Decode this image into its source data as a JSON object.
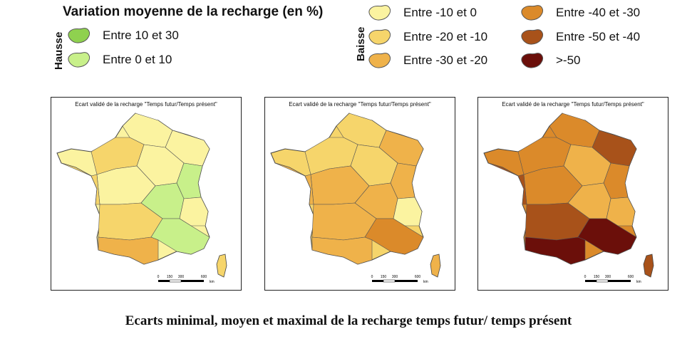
{
  "legend": {
    "title": "Variation moyenne de la recharge (en %)",
    "hausse_label": "Hausse",
    "baisse_label": "Baisse",
    "hausse": [
      {
        "label": "Entre 10 et 30",
        "color": "#8fd14f"
      },
      {
        "label": "Entre 0 et 10",
        "color": "#c8f08a"
      }
    ],
    "baisse": [
      {
        "label": "Entre -10 et 0",
        "color": "#fbf3a0"
      },
      {
        "label": "Entre -20 et -10",
        "color": "#f6d56b"
      },
      {
        "label": "Entre -30 et -20",
        "color": "#efb24a"
      },
      {
        "label": "Entre -40 et -30",
        "color": "#db8a2a"
      },
      {
        "label": "Entre -50 et -40",
        "color": "#a8521a"
      },
      {
        "label": ">-50",
        "color": "#6b0f0a"
      }
    ]
  },
  "maps": [
    {
      "title": "Ecart validé de la recharge \"Temps futur/Temps présent\"",
      "palette": [
        "#fbf3a0",
        "#f6d56b",
        "#c8f08a",
        "#efb24a"
      ]
    },
    {
      "title": "Ecart validé de la recharge \"Temps futur/Temps présent\"",
      "palette": [
        "#f6d56b",
        "#efb24a",
        "#fbf3a0",
        "#db8a2a"
      ]
    },
    {
      "title": "Ecart validé de la recharge \"Temps futur/Temps présent\"",
      "palette": [
        "#db8a2a",
        "#efb24a",
        "#a8521a",
        "#6b0f0a"
      ]
    }
  ],
  "scale": {
    "ticks": [
      "0",
      "150",
      "300",
      "600"
    ],
    "unit": "km"
  },
  "caption": "Ecarts minimal, moyen et maximal de la recharge temps futur/ temps présent"
}
